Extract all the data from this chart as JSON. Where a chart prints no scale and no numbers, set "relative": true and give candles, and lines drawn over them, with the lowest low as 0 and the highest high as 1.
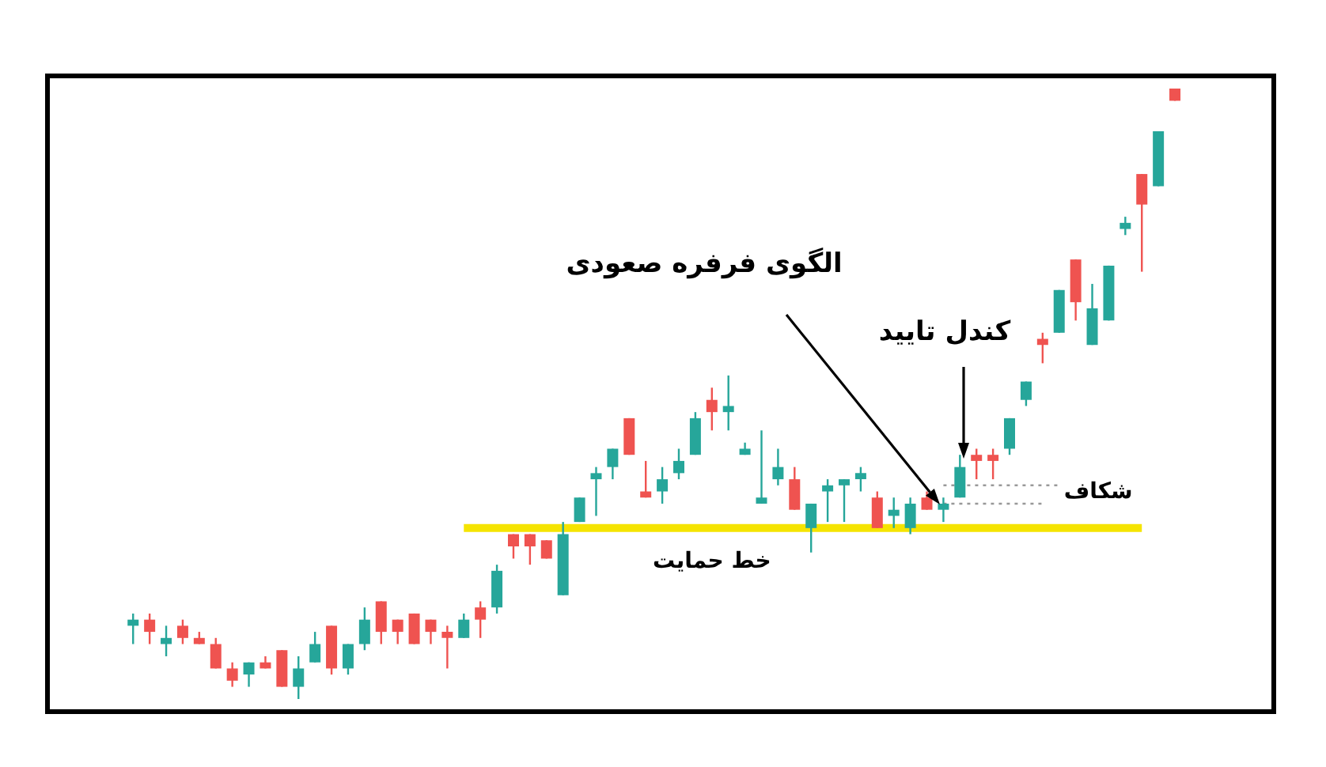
{
  "chart_data": {
    "type": "candlestick",
    "relative": true,
    "categories": [
      null,
      null,
      null,
      null,
      null,
      null,
      null,
      null,
      null,
      null,
      null,
      null,
      null,
      null,
      null,
      null,
      null,
      null,
      null,
      null,
      null,
      null,
      null,
      null,
      null,
      null,
      null,
      null,
      null,
      null,
      null,
      null,
      null,
      null,
      null,
      null,
      null,
      null,
      null,
      null,
      null,
      null,
      null,
      null,
      null,
      null,
      null,
      null,
      null,
      null,
      null,
      null,
      null,
      null,
      null,
      null,
      null,
      null,
      null,
      null,
      null,
      null,
      null,
      null
    ],
    "ohlc": [
      [
        0.12,
        0.14,
        0.09,
        0.13
      ],
      [
        0.13,
        0.14,
        0.09,
        0.11
      ],
      [
        0.09,
        0.12,
        0.07,
        0.1
      ],
      [
        0.12,
        0.13,
        0.09,
        0.1
      ],
      [
        0.1,
        0.11,
        0.09,
        0.09
      ],
      [
        0.09,
        0.1,
        0.05,
        0.05
      ],
      [
        0.05,
        0.06,
        0.02,
        0.03
      ],
      [
        0.04,
        0.06,
        0.02,
        0.06
      ],
      [
        0.06,
        0.07,
        0.05,
        0.05
      ],
      [
        0.08,
        0.08,
        0.02,
        0.02
      ],
      [
        0.02,
        0.07,
        0,
        0.05
      ],
      [
        0.06,
        0.11,
        0.06,
        0.09
      ],
      [
        0.12,
        0.12,
        0.04,
        0.05
      ],
      [
        0.05,
        0.09,
        0.04,
        0.09
      ],
      [
        0.09,
        0.15,
        0.08,
        0.13
      ],
      [
        0.16,
        0.16,
        0.09,
        0.11
      ],
      [
        0.13,
        0.13,
        0.09,
        0.11
      ],
      [
        0.14,
        0.14,
        0.09,
        0.09
      ],
      [
        0.13,
        0.13,
        0.09,
        0.11
      ],
      [
        0.11,
        0.12,
        0.05,
        0.1
      ],
      [
        0.1,
        0.14,
        0.1,
        0.13
      ],
      [
        0.15,
        0.16,
        0.1,
        0.13
      ],
      [
        0.15,
        0.22,
        0.14,
        0.21
      ],
      [
        0.27,
        0.27,
        0.23,
        0.25
      ],
      [
        0.27,
        0.27,
        0.22,
        0.25
      ],
      [
        0.26,
        0.26,
        0.23,
        0.23
      ],
      [
        0.17,
        0.29,
        0.17,
        0.27
      ],
      [
        0.29,
        0.33,
        0.29,
        0.33
      ],
      [
        0.36,
        0.38,
        0.3,
        0.37
      ],
      [
        0.38,
        0.41,
        0.36,
        0.41
      ],
      [
        0.46,
        0.46,
        0.4,
        0.4
      ],
      [
        0.34,
        0.39,
        0.33,
        0.33
      ],
      [
        0.34,
        0.38,
        0.32,
        0.36
      ],
      [
        0.37,
        0.41,
        0.36,
        0.39
      ],
      [
        0.4,
        0.47,
        0.4,
        0.46
      ],
      [
        0.49,
        0.51,
        0.44,
        0.47
      ],
      [
        0.47,
        0.53,
        0.44,
        0.48
      ],
      [
        0.4,
        0.42,
        0.4,
        0.41
      ],
      [
        0.32,
        0.44,
        0.32,
        0.33
      ],
      [
        0.36,
        0.41,
        0.35,
        0.38
      ],
      [
        0.36,
        0.38,
        0.31,
        0.31
      ],
      [
        0.28,
        0.32,
        0.24,
        0.32
      ],
      [
        0.34,
        0.36,
        0.29,
        0.35
      ],
      [
        0.35,
        0.36,
        0.29,
        0.36
      ],
      [
        0.36,
        0.38,
        0.34,
        0.37
      ],
      [
        0.33,
        0.34,
        0.28,
        0.28
      ],
      [
        0.3,
        0.33,
        0.28,
        0.31
      ],
      [
        0.28,
        0.33,
        0.27,
        0.32
      ],
      [
        0.33,
        0.34,
        0.31,
        0.31
      ],
      [
        0.31,
        0.33,
        0.29,
        0.32
      ],
      [
        0.33,
        0.4,
        0.33,
        0.38
      ],
      [
        0.4,
        0.41,
        0.36,
        0.39
      ],
      [
        0.4,
        0.41,
        0.36,
        0.39
      ],
      [
        0.41,
        0.46,
        0.4,
        0.46
      ],
      [
        0.49,
        0.52,
        0.48,
        0.52
      ],
      [
        0.59,
        0.6,
        0.55,
        0.58
      ],
      [
        0.6,
        0.67,
        0.6,
        0.67
      ],
      [
        0.72,
        0.72,
        0.62,
        0.65
      ],
      [
        0.58,
        0.68,
        0.58,
        0.64
      ],
      [
        0.62,
        0.71,
        0.62,
        0.71
      ],
      [
        0.77,
        0.79,
        0.76,
        0.78
      ],
      [
        0.86,
        0.86,
        0.7,
        0.81
      ],
      [
        0.84,
        0.93,
        0.84,
        0.93
      ],
      [
        1,
        1,
        0.98,
        0.98
      ]
    ],
    "colors": [
      "#26a69a",
      "#ef5350",
      "#26a69a",
      "#ef5350",
      "#ef5350",
      "#ef5350",
      "#ef5350",
      "#26a69a",
      "#ef5350",
      "#ef5350",
      "#26a69a",
      "#26a69a",
      "#ef5350",
      "#26a69a",
      "#26a69a",
      "#ef5350",
      "#ef5350",
      "#ef5350",
      "#ef5350",
      "#ef5350",
      "#26a69a",
      "#ef5350",
      "#26a69a",
      "#ef5350",
      "#ef5350",
      "#ef5350",
      "#26a69a",
      "#26a69a",
      "#26a69a",
      "#26a69a",
      "#ef5350",
      "#ef5350",
      "#26a69a",
      "#26a69a",
      "#26a69a",
      "#ef5350",
      "#26a69a",
      "#26a69a",
      "#26a69a",
      "#26a69a",
      "#ef5350",
      "#26a69a",
      "#26a69a",
      "#26a69a",
      "#26a69a",
      "#ef5350",
      "#26a69a",
      "#26a69a",
      "#ef5350",
      "#26a69a",
      "#26a69a",
      "#ef5350",
      "#ef5350",
      "#26a69a",
      "#26a69a",
      "#ef5350",
      "#26a69a",
      "#ef5350",
      "#26a69a",
      "#26a69a",
      "#26a69a",
      "#ef5350",
      "#26a69a",
      "#ef5350"
    ],
    "series": [
      {
        "type": "line",
        "name": "خط حمایت",
        "color": "#f5e400",
        "values": [
          null,
          null,
          null,
          null,
          null,
          null,
          null,
          null,
          null,
          null,
          null,
          null,
          null,
          null,
          null,
          null,
          null,
          null,
          null,
          null,
          0.28,
          0.28,
          0.28,
          0.28,
          0.28,
          0.28,
          0.28,
          0.28,
          0.28,
          0.28,
          0.28,
          0.28,
          0.28,
          0.28,
          0.28,
          0.28,
          0.28,
          0.28,
          0.28,
          0.28,
          0.28,
          0.28,
          0.28,
          0.28,
          0.28,
          0.28,
          0.28,
          0.28,
          0.28,
          0.28,
          0.28,
          0.28,
          0.28,
          0.28,
          0.28,
          0.28,
          0.28,
          0.28,
          0.28,
          0.28,
          0.28,
          0.28,
          null,
          null
        ]
      },
      {
        "type": "line",
        "name": "شکاف",
        "color": "#999999",
        "line_style": "dotted",
        "values": [
          null,
          null,
          null,
          null,
          null,
          null,
          null,
          null,
          null,
          null,
          null,
          null,
          null,
          null,
          null,
          null,
          null,
          null,
          null,
          null,
          null,
          null,
          null,
          null,
          null,
          null,
          null,
          null,
          null,
          null,
          null,
          null,
          null,
          null,
          null,
          null,
          null,
          null,
          null,
          null,
          null,
          null,
          null,
          null,
          null,
          null,
          null,
          null,
          null,
          0.35,
          0.35,
          0.35,
          0.35,
          0.35,
          0.35,
          0.35,
          0.35,
          null,
          null,
          null,
          null,
          null,
          null,
          null
        ]
      },
      {
        "type": "line",
        "color": "#999999",
        "line_style": "dotted",
        "values": [
          null,
          null,
          null,
          null,
          null,
          null,
          null,
          null,
          null,
          null,
          null,
          null,
          null,
          null,
          null,
          null,
          null,
          null,
          null,
          null,
          null,
          null,
          null,
          null,
          null,
          null,
          null,
          null,
          null,
          null,
          null,
          null,
          null,
          null,
          null,
          null,
          null,
          null,
          null,
          null,
          null,
          null,
          null,
          null,
          null,
          null,
          null,
          null,
          null,
          0.32,
          0.32,
          0.32,
          0.32,
          0.32,
          0.32,
          0.32,
          null,
          null,
          null,
          null,
          null,
          null,
          null,
          null
        ]
      }
    ],
    "annotations": [
      "الگوی فرفره صعودی",
      "کندل تایید"
    ]
  }
}
